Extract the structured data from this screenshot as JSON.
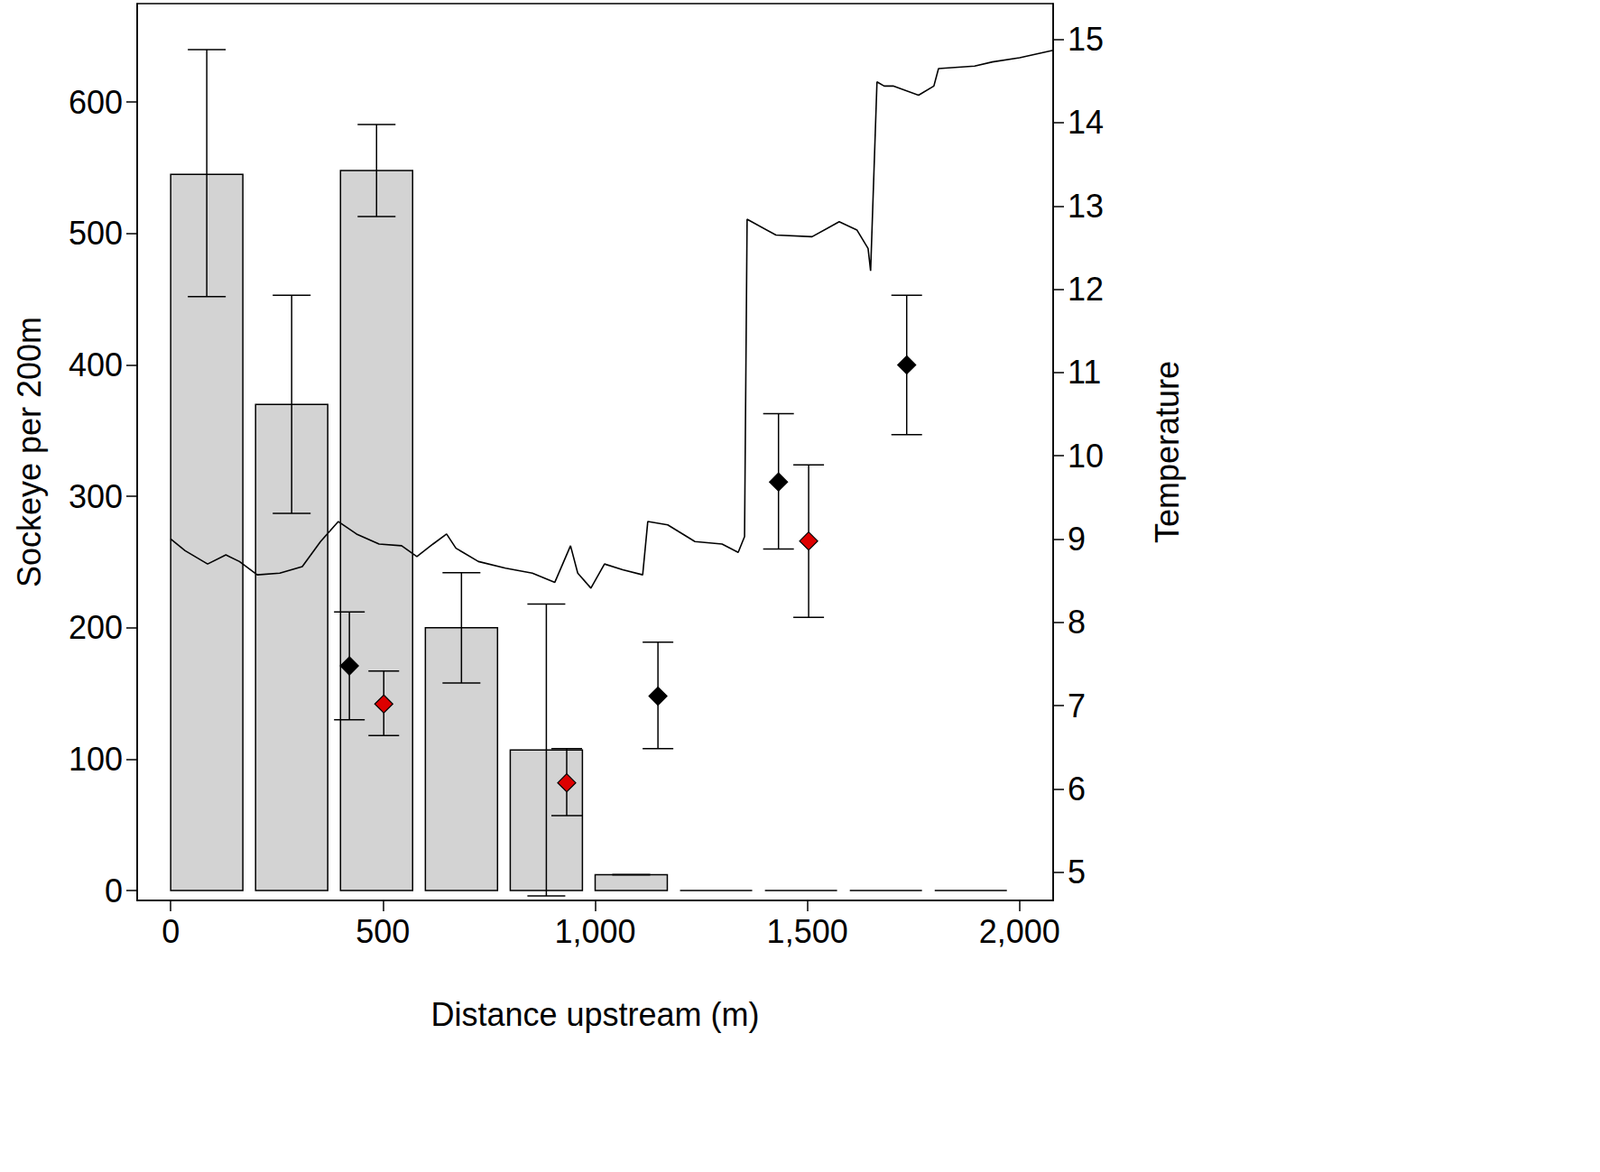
{
  "chart_data": {
    "type": "bar",
    "xlabel": "Distance upstream (m)",
    "ylabel": "Sockeye per 200m",
    "y2label": "Temperature",
    "xlim": [
      -79,
      2079
    ],
    "xticks": [
      0,
      500,
      1000,
      1500,
      2000
    ],
    "ylim": [
      -7.5,
      675
    ],
    "yticks": [
      0,
      100,
      200,
      300,
      400,
      500,
      600
    ],
    "y2lim": [
      4.66,
      15.43
    ],
    "y2ticks": [
      5,
      6,
      7,
      8,
      9,
      10,
      11,
      12,
      13,
      14,
      15
    ],
    "grid": false,
    "series": [
      {
        "type": "bar",
        "color": "#d3d3d3",
        "x": [
          85,
          285,
          485,
          685,
          885,
          1085,
          1285,
          1485,
          1685,
          1885
        ],
        "values": [
          545,
          370,
          548,
          200,
          107,
          12,
          0,
          0,
          0,
          0
        ],
        "error_low": [
          452,
          287,
          513,
          158,
          -4,
          12,
          null,
          null,
          null,
          null
        ],
        "error_high": [
          640,
          453,
          583,
          242,
          218,
          12,
          null,
          null,
          null,
          null
        ]
      },
      {
        "type": "scatter",
        "marker": "diamond",
        "color": "#000000",
        "x": [
          421,
          1148,
          1432,
          1734
        ],
        "values": [
          171,
          148,
          311,
          400
        ],
        "error_low": [
          130,
          108,
          260,
          347
        ],
        "error_high": [
          212,
          189,
          363,
          453
        ]
      },
      {
        "type": "scatter",
        "marker": "diamond",
        "color": "#dd0000",
        "x": [
          502,
          933,
          1503
        ],
        "values": [
          142,
          82,
          266
        ],
        "error_low": [
          118,
          57,
          208
        ],
        "error_high": [
          167,
          108,
          324
        ]
      },
      {
        "type": "line",
        "axis": "y2",
        "color": "#000000",
        "line_style": "solid",
        "x": [
          0,
          34,
          87,
          130,
          162,
          204,
          257,
          310,
          353,
          395,
          438,
          491,
          544,
          580,
          618,
          650,
          672,
          725,
          789,
          852,
          905,
          942,
          959,
          990,
          1022,
          1065,
          1112,
          1124,
          1171,
          1235,
          1299,
          1337,
          1352,
          1358,
          1426,
          1511,
          1575,
          1617,
          1643,
          1649,
          1664,
          1681,
          1702,
          1762,
          1798,
          1809,
          1894,
          1936,
          2000,
          2079
        ],
        "values": [
          9.0,
          8.86,
          8.7,
          8.81,
          8.73,
          8.57,
          8.59,
          8.67,
          8.97,
          9.21,
          9.06,
          8.94,
          8.92,
          8.79,
          8.94,
          9.06,
          8.89,
          8.73,
          8.65,
          8.59,
          8.48,
          8.92,
          8.59,
          8.41,
          8.7,
          8.63,
          8.57,
          9.21,
          9.17,
          8.97,
          8.94,
          8.84,
          9.03,
          12.84,
          12.65,
          12.63,
          12.81,
          12.71,
          12.49,
          12.22,
          14.49,
          14.44,
          14.44,
          14.33,
          14.44,
          14.65,
          14.68,
          14.73,
          14.78,
          14.87
        ]
      }
    ]
  }
}
